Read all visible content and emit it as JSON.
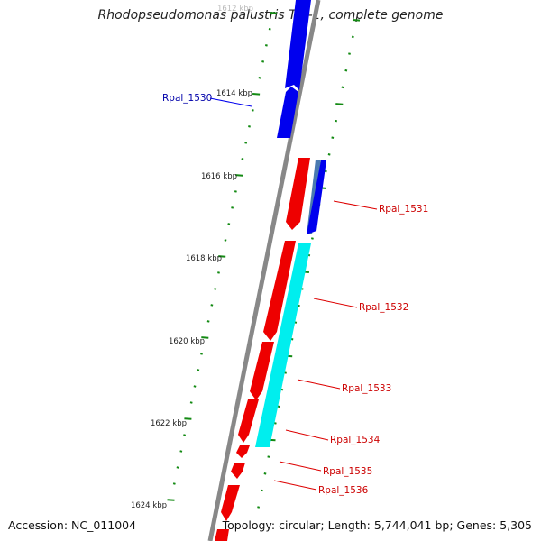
{
  "title": "Rhodopseudomonas palustris TIE-1, complete genome",
  "accession_text": "Accession: NC_011004",
  "summary_text": "Topology: circular; Length: 5,744,041 bp; Genes: 5,305",
  "colors": {
    "backbone": "#888888",
    "tick": "#138a13",
    "forward_gene": "#0000ee",
    "reverse_gene": "#ee0000",
    "cyan_feature": "#00eeee",
    "steel_feature": "#4a7ab0",
    "label_blue": "#0000aa",
    "label_red": "#cc0000"
  },
  "scale": {
    "labels": [
      "1612 kbp",
      "1614 kbp",
      "1616 kbp",
      "1618 kbp",
      "1620 kbp",
      "1622 kbp",
      "1624 kbp"
    ]
  },
  "genes": [
    {
      "label": "Rpal_1530",
      "strand": "forward"
    },
    {
      "label": "Rpal_1531",
      "strand": "forward"
    },
    {
      "label": "Rpal_1532",
      "strand": "reverse"
    },
    {
      "label": "Rpal_1533",
      "strand": "reverse"
    },
    {
      "label": "Rpal_1534",
      "strand": "reverse"
    },
    {
      "label": "Rpal_1535",
      "strand": "reverse"
    },
    {
      "label": "Rpal_1536",
      "strand": "reverse"
    }
  ]
}
